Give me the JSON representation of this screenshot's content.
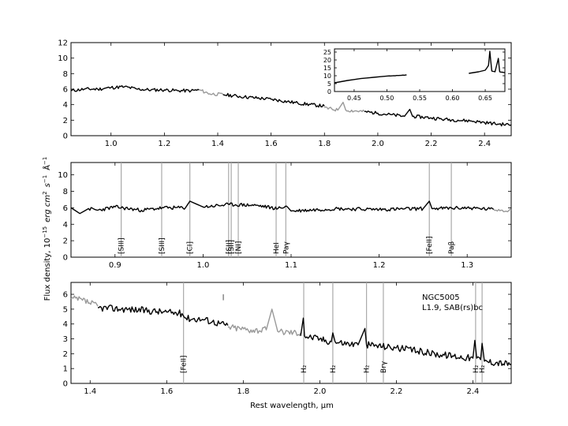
{
  "figure": {
    "ylabel": "Flux density, 10^-15  erg  cm^2  s^-1  Å^-1",
    "ylabel_parts": {
      "main": "Flux density, 10",
      "exp": "−15",
      "units": "erg  cm",
      "sup2": "2",
      "s": "s",
      "supm1": "−1",
      "A": "Å",
      "supm1b": "−1"
    },
    "xlabel": "Rest wavelength, μm",
    "object_name": "NGC5005",
    "object_class": "L1.9,  SAB(rs)bc"
  },
  "chart_data": [
    {
      "type": "line",
      "panel": "top",
      "xlim": [
        0.85,
        2.5
      ],
      "ylim": [
        0,
        12
      ],
      "xticks": [
        1.0,
        1.2,
        1.4,
        1.6,
        1.8,
        2.0,
        2.2,
        2.4
      ],
      "xtick_labels": [
        "1.0",
        "1.2",
        "1.4",
        "1.6",
        "1.8",
        "2.0",
        "2.2",
        "2.4"
      ],
      "yticks": [
        0,
        2,
        4,
        6,
        8,
        10,
        12
      ],
      "ytick_labels": [
        "0",
        "2",
        "4",
        "6",
        "8",
        "10",
        "12"
      ],
      "series": [
        {
          "color": "#000000",
          "x": [
            0.85,
            0.9,
            0.95,
            1.0,
            1.05,
            1.1,
            1.15,
            1.2,
            1.25,
            1.3,
            1.33
          ],
          "y": [
            5.8,
            6.0,
            6.0,
            6.2,
            6.3,
            6.0,
            5.9,
            5.9,
            5.8,
            5.8,
            5.9
          ]
        },
        {
          "color": "#999999",
          "x": [
            1.33,
            1.37,
            1.42
          ],
          "y": [
            5.9,
            5.4,
            5.3
          ]
        },
        {
          "color": "#000000",
          "x": [
            1.42,
            1.5,
            1.6,
            1.7,
            1.8
          ],
          "y": [
            5.3,
            5.0,
            4.7,
            4.2,
            3.8
          ]
        },
        {
          "color": "#999999",
          "x": [
            1.8,
            1.85,
            1.87,
            1.88,
            1.95
          ],
          "y": [
            3.6,
            3.3,
            4.3,
            3.3,
            3.1
          ]
        },
        {
          "color": "#000000",
          "x": [
            1.95,
            2.0,
            2.05,
            2.1,
            2.12,
            2.13,
            2.2,
            2.25,
            2.3,
            2.35,
            2.4,
            2.45,
            2.5
          ],
          "y": [
            3.1,
            2.9,
            2.7,
            2.5,
            3.4,
            2.5,
            2.3,
            2.1,
            2.0,
            1.9,
            1.7,
            1.5,
            1.4
          ]
        }
      ],
      "inset": {
        "xlim": [
          0.42,
          0.68
        ],
        "ylim": [
          0,
          27
        ],
        "xticks": [
          0.45,
          0.5,
          0.55,
          0.6,
          0.65
        ],
        "xtick_labels": [
          "0.45",
          "0.50",
          "0.55",
          "0.60",
          "0.65"
        ],
        "yticks": [
          0,
          5,
          10,
          15,
          20,
          25
        ],
        "ytick_labels": [
          "0",
          "5",
          "10",
          "15",
          "20",
          "25"
        ],
        "series": [
          {
            "color": "#000000",
            "x": [
              0.42,
              0.44,
              0.46,
              0.48,
              0.5,
              0.52,
              0.53
            ],
            "y": [
              5.5,
              7.0,
              8.2,
              9.0,
              9.8,
              10.2,
              10.5
            ]
          },
          {
            "color": "#000000",
            "x": [
              0.625,
              0.64,
              0.65,
              0.655,
              0.657,
              0.66,
              0.665,
              0.67,
              0.672,
              0.68
            ],
            "y": [
              11.5,
              12.5,
              13.5,
              16.5,
              25.5,
              13.0,
              12.5,
              21.0,
              12.5,
              12.0
            ]
          }
        ]
      }
    },
    {
      "type": "line",
      "panel": "middle",
      "xlim": [
        0.85,
        1.35
      ],
      "ylim": [
        0,
        11.5
      ],
      "xticks": [
        0.9,
        1.0,
        1.1,
        1.2,
        1.3
      ],
      "xtick_labels": [
        "0.9",
        "1.0",
        "1.1",
        "1.2",
        "1.3"
      ],
      "yticks": [
        0,
        2,
        4,
        6,
        8,
        10
      ],
      "ytick_labels": [
        "0",
        "2",
        "4",
        "6",
        "8",
        "10"
      ],
      "series": [
        {
          "color": "#000000",
          "x": [
            0.85,
            0.86,
            0.87,
            0.88,
            0.9,
            0.93,
            0.955,
            0.98,
            0.985,
            1.0,
            1.03,
            1.06,
            1.085,
            1.095,
            1.1,
            1.15,
            1.2,
            1.25,
            1.257,
            1.26,
            1.3,
            1.33
          ],
          "y": [
            6.0,
            5.3,
            5.9,
            5.7,
            6.1,
            5.7,
            6.0,
            6.0,
            6.8,
            6.1,
            6.4,
            6.3,
            5.9,
            6.2,
            5.6,
            5.9,
            5.8,
            5.9,
            6.8,
            5.9,
            6.0,
            5.8
          ]
        },
        {
          "color": "#999999",
          "x": [
            1.33,
            1.34,
            1.35
          ],
          "y": [
            5.8,
            5.7,
            5.7
          ]
        }
      ],
      "lines": [
        {
          "x": 0.907,
          "label": "[SIII]"
        },
        {
          "x": 0.953,
          "label": "[SIII]"
        },
        {
          "x": 0.985,
          "label": "[CI]"
        },
        {
          "x": 1.029,
          "label": "[SII]"
        },
        {
          "x": 1.032,
          "label": "[SII]"
        },
        {
          "x": 1.04,
          "label": "[NI]"
        },
        {
          "x": 1.083,
          "label": "HeI"
        },
        {
          "x": 1.094,
          "label": "Paγ"
        },
        {
          "x": 1.257,
          "label": "[FeII]"
        },
        {
          "x": 1.282,
          "label": "Paβ"
        }
      ]
    },
    {
      "type": "line",
      "panel": "bottom",
      "xlim": [
        1.35,
        2.5
      ],
      "ylim": [
        0,
        6.8
      ],
      "xticks": [
        1.4,
        1.6,
        1.8,
        2.0,
        2.2,
        2.4
      ],
      "xtick_labels": [
        "1.4",
        "1.6",
        "1.8",
        "2.0",
        "2.2",
        "2.4"
      ],
      "yticks": [
        0,
        1,
        2,
        3,
        4,
        5,
        6
      ],
      "ytick_labels": [
        "0",
        "1",
        "2",
        "3",
        "4",
        "5",
        "6"
      ],
      "series": [
        {
          "color": "#999999",
          "x": [
            1.35,
            1.38,
            1.42
          ],
          "y": [
            5.7,
            5.6,
            5.2
          ]
        },
        {
          "color": "#000000",
          "x": [
            1.42,
            1.5,
            1.6,
            1.64,
            1.65,
            1.7,
            1.76
          ],
          "y": [
            5.1,
            5.0,
            4.8,
            4.7,
            4.4,
            4.3,
            3.9
          ]
        },
        {
          "color": "#999999",
          "x": [
            1.76,
            1.82,
            1.86,
            1.875,
            1.89,
            1.95
          ],
          "y": [
            3.8,
            3.6,
            3.6,
            5.0,
            3.5,
            3.4
          ]
        },
        {
          "color": "#000000",
          "x": [
            1.95,
            1.957,
            1.96,
            2.0,
            2.03,
            2.034,
            2.04,
            2.1,
            2.118,
            2.122,
            2.13,
            2.2,
            2.3,
            2.4,
            2.405,
            2.41,
            2.42,
            2.424,
            2.43,
            2.5
          ],
          "y": [
            3.2,
            4.4,
            3.2,
            3.0,
            2.8,
            3.4,
            2.8,
            2.6,
            3.7,
            2.6,
            2.6,
            2.4,
            2.0,
            1.7,
            2.9,
            1.7,
            1.6,
            2.7,
            1.5,
            1.3
          ]
        }
      ],
      "lines": [
        {
          "x": 1.644,
          "label": "[FeII]"
        },
        {
          "x": 1.958,
          "label": "H₂"
        },
        {
          "x": 2.034,
          "label": "H₂"
        },
        {
          "x": 2.122,
          "label": "H₂"
        },
        {
          "x": 2.166,
          "label": "Brγ"
        },
        {
          "x": 2.407,
          "label": "H₂"
        },
        {
          "x": 2.424,
          "label": "H₂"
        }
      ],
      "marker": {
        "x": 1.748,
        "y0": 6.0,
        "y1": 5.6
      }
    }
  ]
}
